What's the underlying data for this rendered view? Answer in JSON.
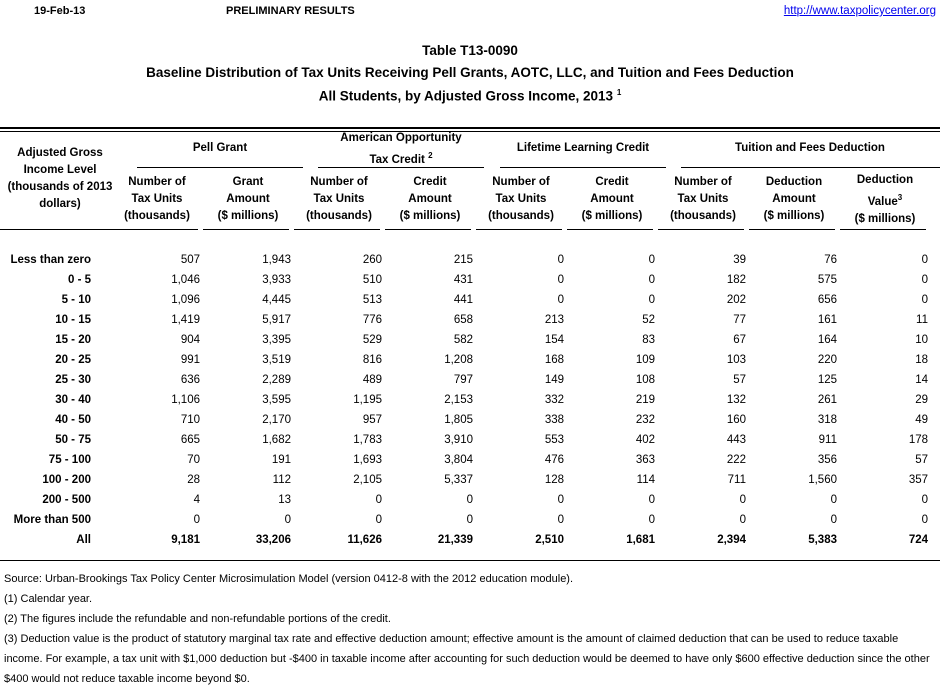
{
  "header": {
    "date": "19-Feb-13",
    "status": "PRELIMINARY RESULTS",
    "url": "http://www.taxpolicycenter.org"
  },
  "title": {
    "line1": "Table T13-0090",
    "line2": "Baseline Distribution of Tax Units Receiving Pell Grants, AOTC, LLC, and Tuition and Fees Deduction",
    "line3": "All Students, by Adjusted Gross Income, 2013",
    "line3_note": "1"
  },
  "table": {
    "row_header": [
      "Adjusted Gross",
      "Income Level",
      "(thousands of 2013",
      "dollars)"
    ],
    "groups": [
      {
        "label": "Pell Grant"
      },
      {
        "label1": "American Opportunity",
        "label2": "Tax Credit",
        "note": "2"
      },
      {
        "label": "Lifetime Learning Credit"
      },
      {
        "label": "Tuition and Fees Deduction"
      }
    ],
    "columns": [
      [
        "Number of",
        "Tax Units",
        "(thousands)"
      ],
      [
        "Grant",
        "Amount",
        "($ millions)"
      ],
      [
        "Number of",
        "Tax Units",
        "(thousands)"
      ],
      [
        "Credit",
        "Amount",
        "($ millions)"
      ],
      [
        "Number of",
        "Tax Units",
        "(thousands)"
      ],
      [
        "Credit",
        "Amount",
        "($ millions)"
      ],
      [
        "Number of",
        "Tax Units",
        "(thousands)"
      ],
      [
        "Deduction",
        "Amount",
        "($ millions)"
      ],
      [
        "Deduction",
        "Value",
        "($ millions)"
      ]
    ],
    "value_note": "3",
    "rows": [
      {
        "label": "Less than zero",
        "values": [
          "507",
          "1,943",
          "260",
          "215",
          "0",
          "0",
          "39",
          "76",
          "0"
        ]
      },
      {
        "label": "0 - 5",
        "values": [
          "1,046",
          "3,933",
          "510",
          "431",
          "0",
          "0",
          "182",
          "575",
          "0"
        ]
      },
      {
        "label": "5 - 10",
        "values": [
          "1,096",
          "4,445",
          "513",
          "441",
          "0",
          "0",
          "202",
          "656",
          "0"
        ]
      },
      {
        "label": "10 - 15",
        "values": [
          "1,419",
          "5,917",
          "776",
          "658",
          "213",
          "52",
          "77",
          "161",
          "11"
        ]
      },
      {
        "label": "15 - 20",
        "values": [
          "904",
          "3,395",
          "529",
          "582",
          "154",
          "83",
          "67",
          "164",
          "10"
        ]
      },
      {
        "label": "20 - 25",
        "values": [
          "991",
          "3,519",
          "816",
          "1,208",
          "168",
          "109",
          "103",
          "220",
          "18"
        ]
      },
      {
        "label": "25 - 30",
        "values": [
          "636",
          "2,289",
          "489",
          "797",
          "149",
          "108",
          "57",
          "125",
          "14"
        ]
      },
      {
        "label": "30 - 40",
        "values": [
          "1,106",
          "3,595",
          "1,195",
          "2,153",
          "332",
          "219",
          "132",
          "261",
          "29"
        ]
      },
      {
        "label": "40 - 50",
        "values": [
          "710",
          "2,170",
          "957",
          "1,805",
          "338",
          "232",
          "160",
          "318",
          "49"
        ]
      },
      {
        "label": "50 - 75",
        "values": [
          "665",
          "1,682",
          "1,783",
          "3,910",
          "553",
          "402",
          "443",
          "911",
          "178"
        ]
      },
      {
        "label": "75 - 100",
        "values": [
          "70",
          "191",
          "1,693",
          "3,804",
          "476",
          "363",
          "222",
          "356",
          "57"
        ]
      },
      {
        "label": "100 - 200",
        "values": [
          "28",
          "112",
          "2,105",
          "5,337",
          "128",
          "114",
          "711",
          "1,560",
          "357"
        ]
      },
      {
        "label": "200 - 500",
        "values": [
          "4",
          "13",
          "0",
          "0",
          "0",
          "0",
          "0",
          "0",
          "0"
        ]
      },
      {
        "label": "More than 500",
        "values": [
          "0",
          "0",
          "0",
          "0",
          "0",
          "0",
          "0",
          "0",
          "0"
        ]
      },
      {
        "label": "All",
        "values": [
          "9,181",
          "33,206",
          "11,626",
          "21,339",
          "2,510",
          "1,681",
          "2,394",
          "5,383",
          "724"
        ],
        "total": true
      }
    ]
  },
  "footnotes": [
    "Source: Urban-Brookings Tax Policy Center Microsimulation Model (version 0412-8 with the 2012 education module).",
    "(1) Calendar year.",
    "(2) The figures include the refundable and non-refundable portions of the credit.",
    "(3) Deduction value is the product of statutory marginal tax rate and effective deduction amount; effective amount is the amount of claimed deduction that can be used to reduce taxable income.  For example, a tax unit with $1,000 deduction but -$400 in taxable income after accounting for such deduction would be deemed to have only $600 effective deduction since the other $400 would not reduce taxable income beyond $0."
  ]
}
